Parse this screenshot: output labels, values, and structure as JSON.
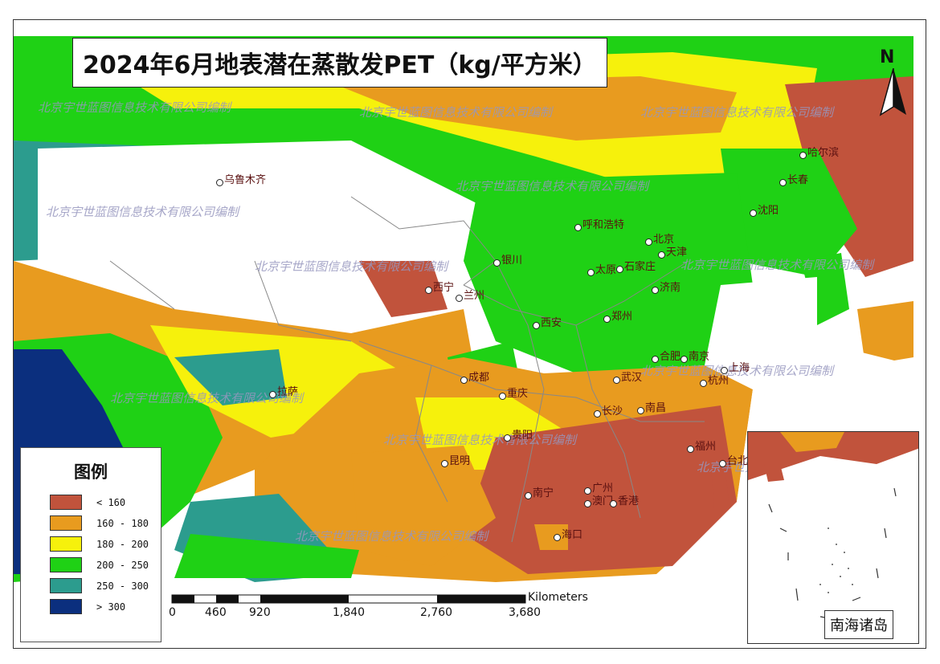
{
  "title": "2024年6月地表潜在蒸散发PET（kg/平方米）",
  "north_label": "N",
  "legend": {
    "title": "图例",
    "items": [
      {
        "label": "< 160",
        "color": "#c1533c"
      },
      {
        "label": "160 - 180",
        "color": "#e89b1f"
      },
      {
        "label": "180 - 200",
        "color": "#f6f10c"
      },
      {
        "label": "200 - 250",
        "color": "#1fd115"
      },
      {
        "label": "250 - 300",
        "color": "#2c9c8e"
      },
      {
        "label": "> 300",
        "color": "#0b2f7e"
      }
    ]
  },
  "scale_bar": {
    "unit": "Kilometers",
    "ticks": [
      "0",
      "460",
      "920",
      "1,840",
      "2,760",
      "3,680"
    ]
  },
  "inset_label": "南海诸岛",
  "watermark": "北京宇世蓝图信息技术有限公司编制",
  "cities": [
    {
      "name": "乌鲁木齐"
    },
    {
      "name": "哈尔滨"
    },
    {
      "name": "长春"
    },
    {
      "name": "沈阳"
    },
    {
      "name": "呼和浩特"
    },
    {
      "name": "北京"
    },
    {
      "name": "天津"
    },
    {
      "name": "石家庄"
    },
    {
      "name": "太原"
    },
    {
      "name": "银川"
    },
    {
      "name": "西宁"
    },
    {
      "name": "兰州"
    },
    {
      "name": "济南"
    },
    {
      "name": "郑州"
    },
    {
      "name": "西安"
    },
    {
      "name": "合肥"
    },
    {
      "name": "南京"
    },
    {
      "name": "上海"
    },
    {
      "name": "杭州"
    },
    {
      "name": "成都"
    },
    {
      "name": "拉萨"
    },
    {
      "name": "重庆"
    },
    {
      "name": "武汉"
    },
    {
      "name": "长沙"
    },
    {
      "name": "南昌"
    },
    {
      "name": "贵阳"
    },
    {
      "name": "昆明"
    },
    {
      "name": "福州"
    },
    {
      "name": "台北"
    },
    {
      "name": "南宁"
    },
    {
      "name": "广州"
    },
    {
      "name": "香港"
    },
    {
      "name": "澳门"
    },
    {
      "name": "海口"
    }
  ]
}
